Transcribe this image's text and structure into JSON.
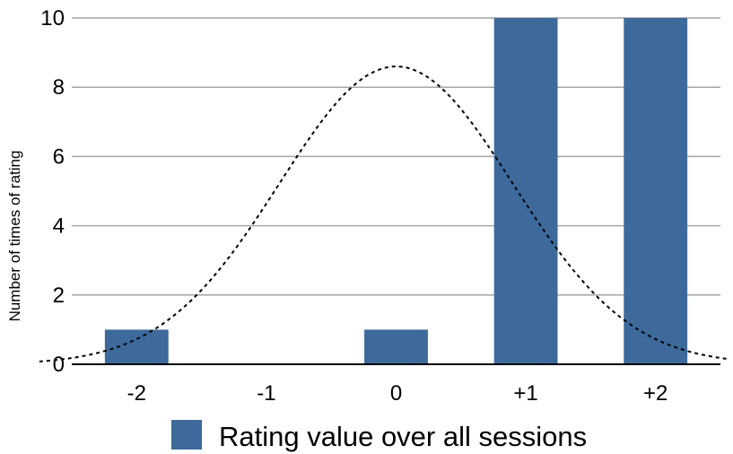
{
  "chart_data": {
    "type": "bar",
    "categories": [
      "-2",
      "-1",
      "0",
      "+1",
      "+2"
    ],
    "series": [
      {
        "name": "Rating value over all sessions",
        "values": [
          1,
          0,
          1,
          10,
          10
        ],
        "color": "#3d6a9b"
      }
    ],
    "overlay": {
      "type": "line",
      "style": "dotted",
      "color": "#000000",
      "description_values": {
        "x": [
          -2.5,
          -2.0,
          -1.5,
          -1.0,
          -0.5,
          0.0,
          0.5,
          1.0,
          1.5,
          2.0,
          2.5
        ],
        "y": [
          0,
          0.9,
          2.0,
          3.9,
          6.5,
          8.6,
          8.0,
          5.2,
          2.6,
          0.9,
          0
        ]
      }
    },
    "title": "",
    "xlabel": "",
    "ylabel": "Number of times of rating",
    "ylim": [
      0,
      10
    ],
    "yticks": [
      "0",
      "2",
      "4",
      "6",
      "8",
      "10"
    ],
    "grid": true,
    "legend_position": "bottom"
  }
}
